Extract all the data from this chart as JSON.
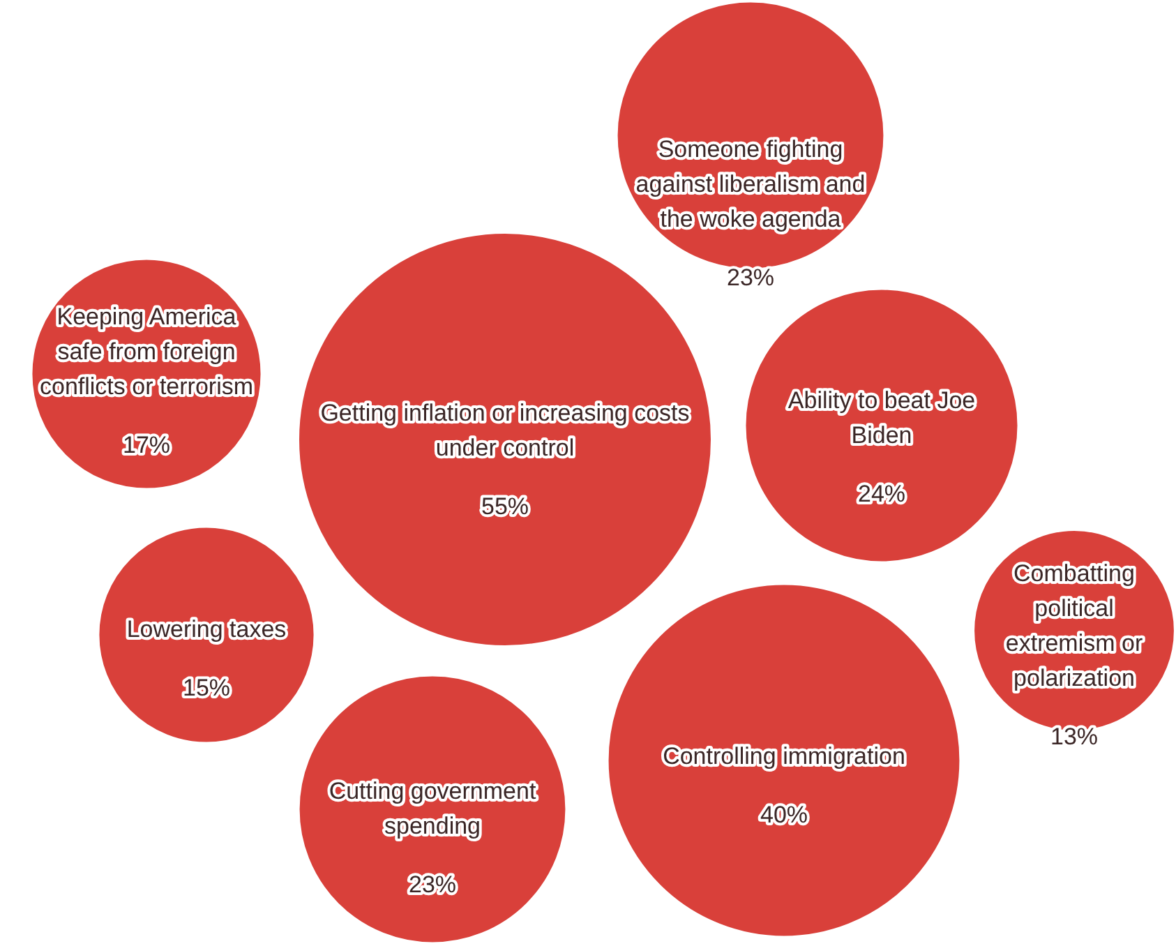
{
  "chart_data": {
    "type": "other",
    "categories": [
      "Someone fighting against liberalism and the woke agenda",
      "Keeping America safe from foreign conflicts or terrorism",
      "Getting inflation or increasing costs under control",
      "Ability to beat Joe Biden",
      "Combatting political extremism or polarization",
      "Lowering taxes",
      "Cutting government spending",
      "Controlling immigration"
    ],
    "values": [
      23,
      17,
      55,
      24,
      13,
      15,
      23,
      40
    ],
    "value_labels": [
      "23%",
      "17%",
      "55%",
      "24%",
      "13%",
      "15%",
      "23%",
      "40%"
    ],
    "color": "#d9403a"
  }
}
